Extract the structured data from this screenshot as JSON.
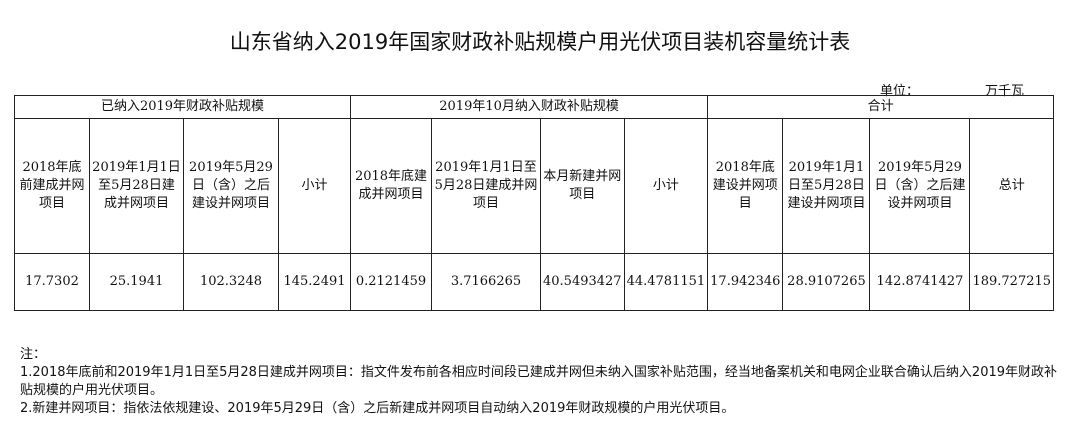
{
  "title": "山东省纳入2019年国家财政补贴规模户用光伏项目装机容量统计表",
  "unit": {
    "label": "单位：",
    "value": "万千瓦"
  },
  "groups": [
    "已纳入2019年财政补贴规模",
    "2019年10月纳入财政补贴规模",
    "合计"
  ],
  "headers": [
    "2018年底前建成并网项目",
    "2019年1月1日至5月28日建成并网项目",
    "2019年5月29日（含）之后建设并网项目",
    "小计",
    "2018年底建成并网项目",
    "2019年1月1日至5月28日建成并网项目",
    "本月新建并网项目",
    "小计",
    "2018年底建设并网项目",
    "2019年1月1日至5月28日建设并网项目",
    "2019年5月29日（含）之后建设并网项目",
    "总计"
  ],
  "values": [
    "17.7302",
    "25.1941",
    "102.3248",
    "145.2491",
    "0.2121459",
    "3.7166265",
    "40.5493427",
    "44.4781151",
    "17.942346",
    "28.9107265",
    "142.8741427",
    "189.727215"
  ],
  "notes": {
    "heading": "注：",
    "items": [
      "1.2018年底前和2019年1月1日至5月28日建成并网项目：指文件发布前各相应时间段已建成并网但未纳入国家补贴范围，经当地备案机关和电网企业联合确认后纳入2019年财政补贴规模的户用光伏项目。",
      "2.新建并网项目：指依法依规建设、2019年5月29日（含）之后新建成并网项目自动纳入2019年财政规模的户用光伏项目。"
    ]
  }
}
